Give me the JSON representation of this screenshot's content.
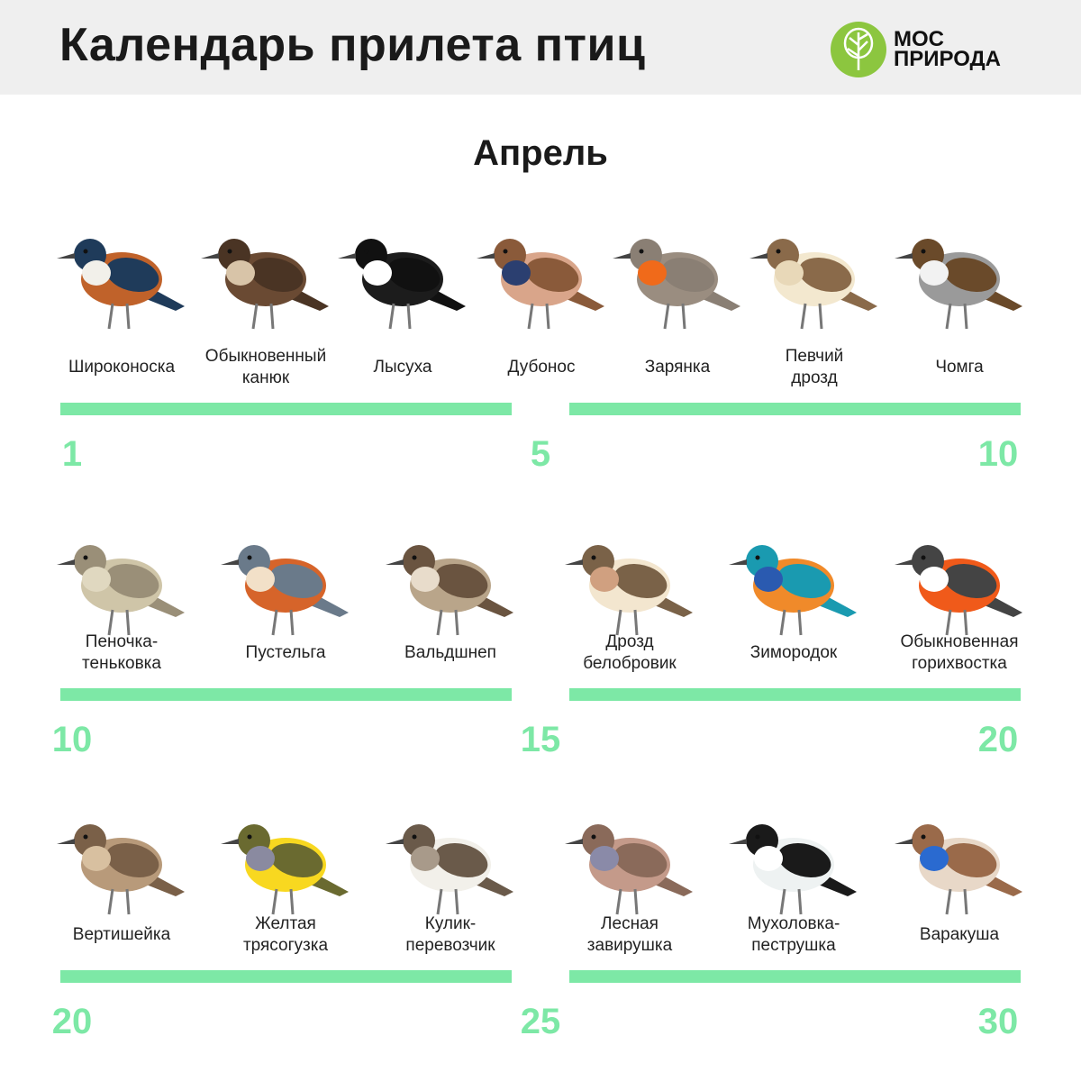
{
  "header": {
    "title": "Календарь прилета птиц",
    "logo_text": [
      "МОС",
      "ПРИРОДА"
    ],
    "logo_color": "#8cc63f"
  },
  "month": "Апрель",
  "accent_color": "#7de8a6",
  "rows": [
    {
      "day_labels": [
        "1",
        "5",
        "10"
      ],
      "birds": [
        {
          "name": "Широконоска",
          "colors": [
            "#c0622a",
            "#1f3b5a",
            "#f2f0ea"
          ]
        },
        {
          "name": "Обыкновенный\nканюк",
          "colors": [
            "#6a4a33",
            "#4a3424",
            "#d8c4a8"
          ]
        },
        {
          "name": "Лысуха",
          "colors": [
            "#1c1c1c",
            "#111111",
            "#ffffff"
          ]
        },
        {
          "name": "Дубонос",
          "colors": [
            "#d9a58a",
            "#8a5a3a",
            "#2b3f70"
          ]
        },
        {
          "name": "Зарянка",
          "colors": [
            "#9a8d80",
            "#8a7f74",
            "#f06a1a"
          ]
        },
        {
          "name": "Певчий\nдрозд",
          "colors": [
            "#f3e8cf",
            "#8a6a4a",
            "#e8d8b8"
          ]
        },
        {
          "name": "Чомга",
          "colors": [
            "#9a9a9a",
            "#6a4a2a",
            "#f2f2f2"
          ]
        }
      ]
    },
    {
      "day_labels": [
        "10",
        "15",
        "20"
      ],
      "birds": [
        {
          "name": "Пеночка-\nтеньковка",
          "colors": [
            "#cfc5a8",
            "#9a8f78",
            "#e0d8c0"
          ]
        },
        {
          "name": "Пустельга",
          "colors": [
            "#d6642a",
            "#6a7a8a",
            "#f2e0c8"
          ]
        },
        {
          "name": "Вальдшнеп",
          "colors": [
            "#b9a58a",
            "#6a5440",
            "#e8dccb"
          ]
        },
        {
          "name": "Дрозд\nбелобровик",
          "colors": [
            "#f3e6cf",
            "#7a6248",
            "#d0a080"
          ]
        },
        {
          "name": "Зимородок",
          "colors": [
            "#f08a2a",
            "#1a9ab0",
            "#2a5ab0"
          ]
        },
        {
          "name": "Обыкновенная\nгорихвостка",
          "colors": [
            "#f05a1a",
            "#444444",
            "#ffffff"
          ]
        }
      ]
    },
    {
      "day_labels": [
        "20",
        "25",
        "30"
      ],
      "birds": [
        {
          "name": "Вертишейка",
          "colors": [
            "#b89a7a",
            "#7a6048",
            "#d8c0a0"
          ]
        },
        {
          "name": "Желтая\nтрясогузка",
          "colors": [
            "#f8d820",
            "#6a6a30",
            "#8a8aa0"
          ]
        },
        {
          "name": "Кулик-\nперевозчик",
          "colors": [
            "#f2f0ea",
            "#6a5a4a",
            "#a89a8a"
          ]
        },
        {
          "name": "Лесная\nзавирушка",
          "colors": [
            "#c49a8a",
            "#8a6a5a",
            "#8a8aa8"
          ]
        },
        {
          "name": "Мухоловка-\nпеструшка",
          "colors": [
            "#eef2f2",
            "#1a1a1a",
            "#ffffff"
          ]
        },
        {
          "name": "Варакуша",
          "colors": [
            "#e8d8c8",
            "#9a6a4a",
            "#2a6ad0"
          ]
        }
      ]
    }
  ]
}
